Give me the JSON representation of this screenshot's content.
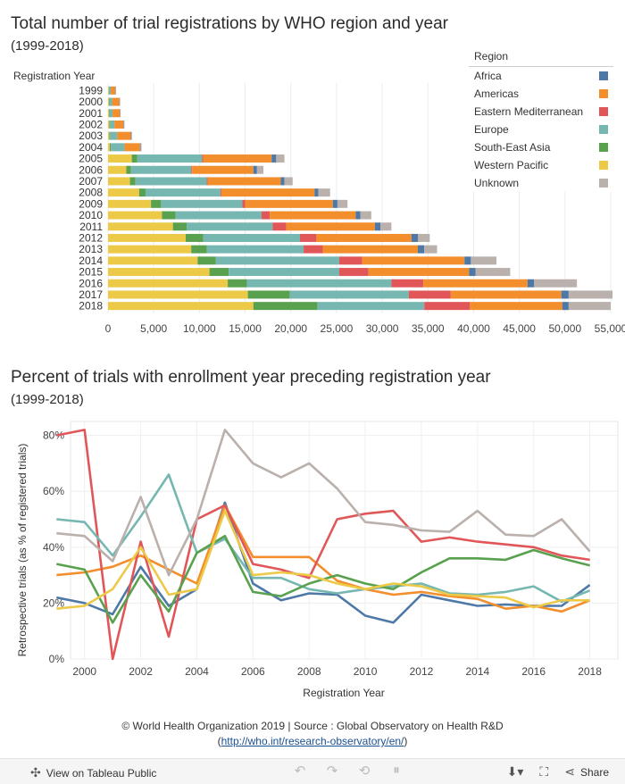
{
  "bar_chart": {
    "title": "Total number of trial registrations by WHO region and year",
    "subtitle": "(1999-2018)",
    "ylabel": "Registration Year"
  },
  "line_chart": {
    "title": "Percent of trials with enrollment year preceding registration year",
    "subtitle": "(1999-2018)",
    "ylabel": "Retrospective trials (as % of registered trials)",
    "xlabel": "Registration Year"
  },
  "legend": {
    "title": "Region",
    "items": [
      {
        "name": "Africa",
        "color": "#4e79a7"
      },
      {
        "name": "Americas",
        "color": "#f28e2b"
      },
      {
        "name": "Eastern Mediterranean",
        "color": "#e15759"
      },
      {
        "name": "Europe",
        "color": "#76b7b2"
      },
      {
        "name": "South-East Asia",
        "color": "#59a14f"
      },
      {
        "name": "Western Pacific",
        "color": "#edc948"
      },
      {
        "name": "Unknown",
        "color": "#bab0ac"
      }
    ]
  },
  "credit": {
    "line1": "© World Health Organization 2019 | Source : Global Observatory on Health R&D",
    "link_open": "(",
    "link": "http://who.int/research-observatory/en/",
    "link_close": ")"
  },
  "toolbar": {
    "view_label": "View on Tableau Public",
    "share_label": "Share"
  },
  "chart_data": [
    {
      "type": "bar",
      "orientation": "horizontal-stacked",
      "categories": [
        "1999",
        "2000",
        "2001",
        "2002",
        "2003",
        "2004",
        "2005",
        "2006",
        "2007",
        "2008",
        "2009",
        "2010",
        "2011",
        "2012",
        "2013",
        "2014",
        "2015",
        "2016",
        "2017",
        "2018"
      ],
      "xlim": [
        0,
        55000
      ],
      "xticks": [
        0,
        5000,
        10000,
        15000,
        20000,
        25000,
        30000,
        35000,
        40000,
        45000,
        50000,
        55000
      ],
      "xtick_labels": [
        "0",
        "5,000",
        "10,000",
        "15,000",
        "20,000",
        "25,000",
        "30,000",
        "35,000",
        "40,000",
        "45,000",
        "50,000",
        "55,000"
      ],
      "series": [
        {
          "name": "Western Pacific",
          "color": "#edc948",
          "values": [
            80,
            100,
            100,
            150,
            150,
            200,
            2600,
            2000,
            2400,
            3400,
            4700,
            5900,
            7100,
            8500,
            9100,
            9800,
            11100,
            13100,
            15300,
            15900
          ]
        },
        {
          "name": "South-East Asia",
          "color": "#59a14f",
          "values": [
            20,
            50,
            50,
            50,
            50,
            100,
            600,
            500,
            600,
            700,
            1100,
            1500,
            1500,
            1900,
            1700,
            2000,
            2100,
            2100,
            4600,
            7000
          ]
        },
        {
          "name": "Europe",
          "color": "#76b7b2",
          "values": [
            200,
            300,
            350,
            500,
            800,
            1500,
            7100,
            6600,
            7800,
            8200,
            8900,
            9400,
            9400,
            10600,
            10600,
            13500,
            12100,
            15800,
            13000,
            11700
          ]
        },
        {
          "name": "Eastern Mediterranean",
          "color": "#e15759",
          "values": [
            0,
            0,
            0,
            0,
            0,
            0,
            100,
            100,
            100,
            100,
            300,
            900,
            1500,
            1800,
            2100,
            2500,
            3200,
            3500,
            4600,
            5000
          ]
        },
        {
          "name": "Americas",
          "color": "#f28e2b",
          "values": [
            500,
            800,
            800,
            1000,
            1500,
            1700,
            7500,
            6700,
            8000,
            10200,
            9600,
            9400,
            9700,
            10400,
            10400,
            11200,
            11000,
            11400,
            12100,
            10100
          ]
        },
        {
          "name": "Africa",
          "color": "#4e79a7",
          "values": [
            20,
            30,
            30,
            40,
            50,
            60,
            500,
            400,
            400,
            400,
            500,
            500,
            600,
            700,
            700,
            700,
            700,
            700,
            800,
            700
          ]
        },
        {
          "name": "Unknown",
          "color": "#bab0ac",
          "values": [
            20,
            50,
            50,
            60,
            80,
            100,
            900,
            700,
            900,
            1300,
            1100,
            1200,
            1200,
            1300,
            1400,
            2800,
            3800,
            4700,
            4800,
            4600
          ]
        }
      ]
    },
    {
      "type": "line",
      "x": [
        1999,
        2000,
        2001,
        2002,
        2003,
        2004,
        2005,
        2006,
        2007,
        2008,
        2009,
        2010,
        2011,
        2012,
        2013,
        2014,
        2015,
        2016,
        2017,
        2018
      ],
      "xlim": [
        1999.5,
        2019
      ],
      "ylim": [
        0,
        0.85
      ],
      "yticks": [
        0,
        0.2,
        0.4,
        0.6,
        0.8
      ],
      "ytick_labels": [
        "0%",
        "20%",
        "40%",
        "60%",
        "80%"
      ],
      "xticks": [
        2000,
        2002,
        2004,
        2006,
        2008,
        2010,
        2012,
        2014,
        2016,
        2018
      ],
      "grid": true,
      "series": [
        {
          "name": "Africa",
          "color": "#4e79a7",
          "values": [
            0.22,
            0.2,
            0.16,
            0.33,
            0.19,
            0.25,
            0.56,
            0.27,
            0.21,
            0.235,
            0.23,
            0.155,
            0.13,
            0.23,
            0.21,
            0.19,
            0.195,
            0.19,
            0.19,
            0.265
          ]
        },
        {
          "name": "Americas",
          "color": "#f28e2b",
          "values": [
            0.3,
            0.31,
            0.33,
            0.37,
            0.32,
            0.27,
            0.55,
            0.365,
            0.365,
            0.365,
            0.28,
            0.25,
            0.23,
            0.24,
            0.225,
            0.215,
            0.18,
            0.19,
            0.17,
            0.21
          ]
        },
        {
          "name": "Eastern Mediterranean",
          "color": "#e15759",
          "values": [
            0.8,
            0.82,
            0.0,
            0.42,
            0.08,
            0.5,
            0.55,
            0.34,
            0.32,
            0.29,
            0.5,
            0.52,
            0.53,
            0.42,
            0.435,
            0.42,
            0.41,
            0.4,
            0.37,
            0.355
          ]
        },
        {
          "name": "Europe",
          "color": "#76b7b2",
          "values": [
            0.5,
            0.49,
            0.37,
            0.51,
            0.66,
            0.38,
            0.43,
            0.29,
            0.29,
            0.25,
            0.235,
            0.25,
            0.26,
            0.27,
            0.235,
            0.23,
            0.24,
            0.26,
            0.205,
            0.245
          ]
        },
        {
          "name": "South-East Asia",
          "color": "#59a14f",
          "values": [
            0.34,
            0.32,
            0.13,
            0.3,
            0.17,
            0.38,
            0.44,
            0.24,
            0.225,
            0.27,
            0.3,
            0.27,
            0.25,
            0.31,
            0.36,
            0.36,
            0.355,
            0.39,
            0.36,
            0.335
          ]
        },
        {
          "name": "Western Pacific",
          "color": "#edc948",
          "values": [
            0.18,
            0.19,
            0.25,
            0.4,
            0.23,
            0.25,
            0.53,
            0.3,
            0.31,
            0.3,
            0.27,
            0.25,
            0.27,
            0.26,
            0.23,
            0.225,
            0.22,
            0.185,
            0.21,
            0.21
          ]
        },
        {
          "name": "Unknown",
          "color": "#bab0ac",
          "values": [
            0.45,
            0.44,
            0.35,
            0.58,
            0.3,
            0.5,
            0.82,
            0.7,
            0.65,
            0.7,
            0.61,
            0.49,
            0.48,
            0.46,
            0.455,
            0.53,
            0.445,
            0.44,
            0.5,
            0.385
          ]
        }
      ]
    }
  ]
}
